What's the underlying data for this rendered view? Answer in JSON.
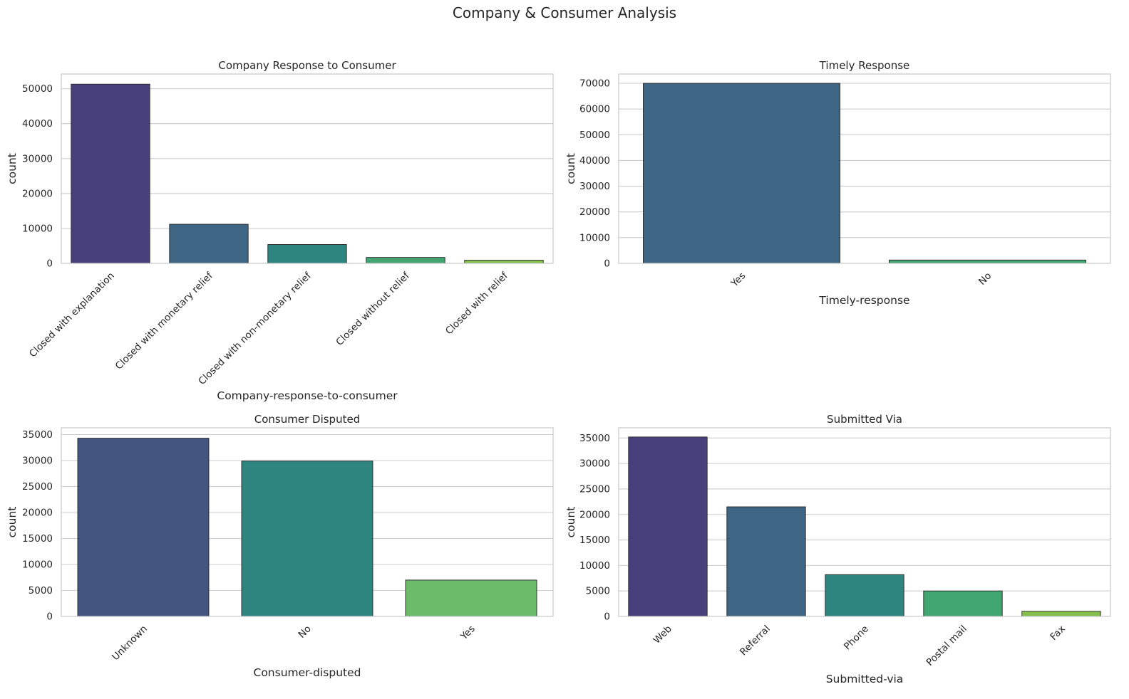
{
  "figure": {
    "title": "Company & Consumer Analysis"
  },
  "chart_data": [
    {
      "type": "bar",
      "title": "Company Response to Consumer",
      "xlabel": "Company-response-to-consumer",
      "ylabel": "count",
      "categories": [
        "Closed with explanation",
        "Closed with monetary relief",
        "Closed with non-monetary relief",
        "Closed without relief",
        "Closed with relief"
      ],
      "values": [
        51300,
        11200,
        5400,
        1700,
        900
      ],
      "colors": [
        "#48407a",
        "#3e6583",
        "#2e847f",
        "#41a672",
        "#83bf4a"
      ],
      "ylim": [
        0,
        54200
      ],
      "yticks": [
        0,
        10000,
        20000,
        30000,
        40000,
        50000
      ],
      "xtick_rotation": 45,
      "grid": true
    },
    {
      "type": "bar",
      "title": "Timely Response",
      "xlabel": "Timely-response",
      "ylabel": "count",
      "categories": [
        "Yes",
        "No"
      ],
      "values": [
        70000,
        1300
      ],
      "colors": [
        "#3e6583",
        "#41a672"
      ],
      "ylim": [
        0,
        73600
      ],
      "yticks": [
        0,
        10000,
        20000,
        30000,
        40000,
        50000,
        60000,
        70000
      ],
      "xtick_rotation": 45,
      "grid": true
    },
    {
      "type": "bar",
      "title": "Consumer Disputed",
      "xlabel": "Consumer-disputed",
      "ylabel": "count",
      "categories": [
        "Unknown",
        "No",
        "Yes"
      ],
      "values": [
        34300,
        29900,
        7000
      ],
      "colors": [
        "#44557f",
        "#2e847f",
        "#6cbb6a"
      ],
      "ylim": [
        0,
        36300
      ],
      "yticks": [
        0,
        5000,
        10000,
        15000,
        20000,
        25000,
        30000,
        35000
      ],
      "xtick_rotation": 45,
      "grid": true
    },
    {
      "type": "bar",
      "title": "Submitted Via",
      "xlabel": "Submitted-via",
      "ylabel": "count",
      "categories": [
        "Web",
        "Referral",
        "Phone",
        "Postal mail",
        "Fax"
      ],
      "values": [
        35200,
        21500,
        8200,
        5000,
        1000
      ],
      "colors": [
        "#48407a",
        "#3e6583",
        "#2e847f",
        "#41a672",
        "#83bf4a"
      ],
      "ylim": [
        0,
        37000
      ],
      "yticks": [
        0,
        5000,
        10000,
        15000,
        20000,
        25000,
        30000,
        35000
      ],
      "xtick_rotation": 45,
      "grid": true
    }
  ]
}
